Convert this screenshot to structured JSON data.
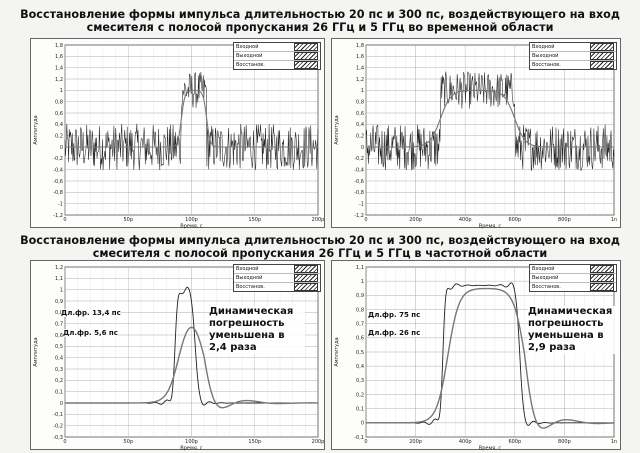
{
  "titles": {
    "top": "Восстановление формы импульса длительностью 20 пс и 300 пс, воздействующего на вход смесителя с полосой пропускания 26 ГГц и 5 ГГц во временной области",
    "bottom": "Восстановление формы импульса длительностью 20 пс и 300 пс, воздействующего на вход смесителя с полосой пропускания 26 ГГц и 5 ГГц в частотной области"
  },
  "legend": {
    "items": [
      "Входной",
      "Выходной",
      "Восстанов."
    ]
  },
  "annotations": {
    "p3_front1": "Дл.фр. 13,4 пс",
    "p3_front2": "Дл.фр. 5,6 пс",
    "p3_note": "Динамическая погрешность уменьшена в 2,4 раза",
    "p4_front1": "Дл.фр. 75 пс",
    "p4_front2": "Дл.фр. 26 пс",
    "p4_note": "Динамическая погрешность уменьшена в 2,9 раза"
  },
  "colors": {
    "grid": "#9a9a9a",
    "signal_dark": "#222222",
    "signal_gray": "#777777"
  },
  "chart_data": [
    {
      "type": "line",
      "xlabel": "Время, с",
      "ylabel": "Амплитуда",
      "xlim": [
        0,
        200
      ],
      "ylim": [
        -1.2,
        1.8
      ],
      "x_ticks": [
        "0",
        "50p",
        "100p",
        "150p",
        "200p"
      ],
      "y_ticks": [
        "1,8",
        "1,6",
        "1,4",
        "1,2",
        "1",
        "0,8",
        "0,6",
        "0,4",
        "0,2",
        "0",
        "-0,2",
        "-0,4",
        "-0,6",
        "-0,8",
        "-1",
        "-1,2"
      ],
      "pulse_start": 92,
      "pulse_end": 112,
      "pulse_level": 1.0,
      "noise": 0.55,
      "series": [
        {
          "name": "Входной",
          "shape": "noisy-pulse"
        },
        {
          "name": "Восстанов.",
          "shape": "smooth-pulse"
        }
      ]
    },
    {
      "type": "line",
      "xlabel": "Время, с",
      "ylabel": "Амплитуда",
      "xlim": [
        0,
        1000
      ],
      "ylim": [
        -1.2,
        1.8
      ],
      "x_ticks": [
        "0",
        "200p",
        "400p",
        "600p",
        "800p",
        "1n"
      ],
      "y_ticks": [
        "1,8",
        "1,6",
        "1,4",
        "1,2",
        "1",
        "0,8",
        "0,6",
        "0,4",
        "0,2",
        "0",
        "-0,2",
        "-0,4",
        "-0,6",
        "-0,8",
        "-1",
        "-1,2"
      ],
      "pulse_start": 300,
      "pulse_end": 600,
      "pulse_level": 1.0,
      "noise": 0.55,
      "series": [
        {
          "name": "Входной",
          "shape": "noisy-pulse"
        },
        {
          "name": "Восстанов.",
          "shape": "smooth-pulse"
        }
      ]
    },
    {
      "type": "line",
      "xlabel": "Время, с",
      "ylabel": "Амплитуда",
      "xlim": [
        0,
        200
      ],
      "ylim": [
        -0.3,
        1.2
      ],
      "x_ticks": [
        "0",
        "50p",
        "100p",
        "150p",
        "200p"
      ],
      "y_ticks": [
        "1,2",
        "1,1",
        "1",
        "0,9",
        "0,8",
        "0,7",
        "0,6",
        "0,5",
        "0,4",
        "0,3",
        "0,2",
        "0,1",
        "0",
        "-0,1",
        "-0,2",
        "-0,3"
      ],
      "series": [
        {
          "name": "Восстанов.",
          "shape": "ringing-pulse",
          "start": 87,
          "end": 103,
          "level": 1.0
        },
        {
          "name": "Выходной",
          "shape": "slow-pulse",
          "start": 90,
          "end": 110,
          "level": 0.82
        }
      ]
    },
    {
      "type": "line",
      "xlabel": "Время, с",
      "ylabel": "Амплитуда",
      "xlim": [
        0,
        1000
      ],
      "ylim": [
        -0.1,
        1.1
      ],
      "x_ticks": [
        "0",
        "200p",
        "400p",
        "600p",
        "800p",
        "1n"
      ],
      "y_ticks": [
        "1,1",
        "1",
        "0,9",
        "0,8",
        "0,7",
        "0,6",
        "0,5",
        "0,4",
        "0,3",
        "0,2",
        "0,1",
        "0",
        "-0,1"
      ],
      "series": [
        {
          "name": "Восстанов.",
          "shape": "ringing-pulse",
          "start": 310,
          "end": 620,
          "level": 0.97
        },
        {
          "name": "Выходной",
          "shape": "slow-pulse",
          "start": 330,
          "end": 640,
          "level": 0.95
        }
      ]
    }
  ]
}
